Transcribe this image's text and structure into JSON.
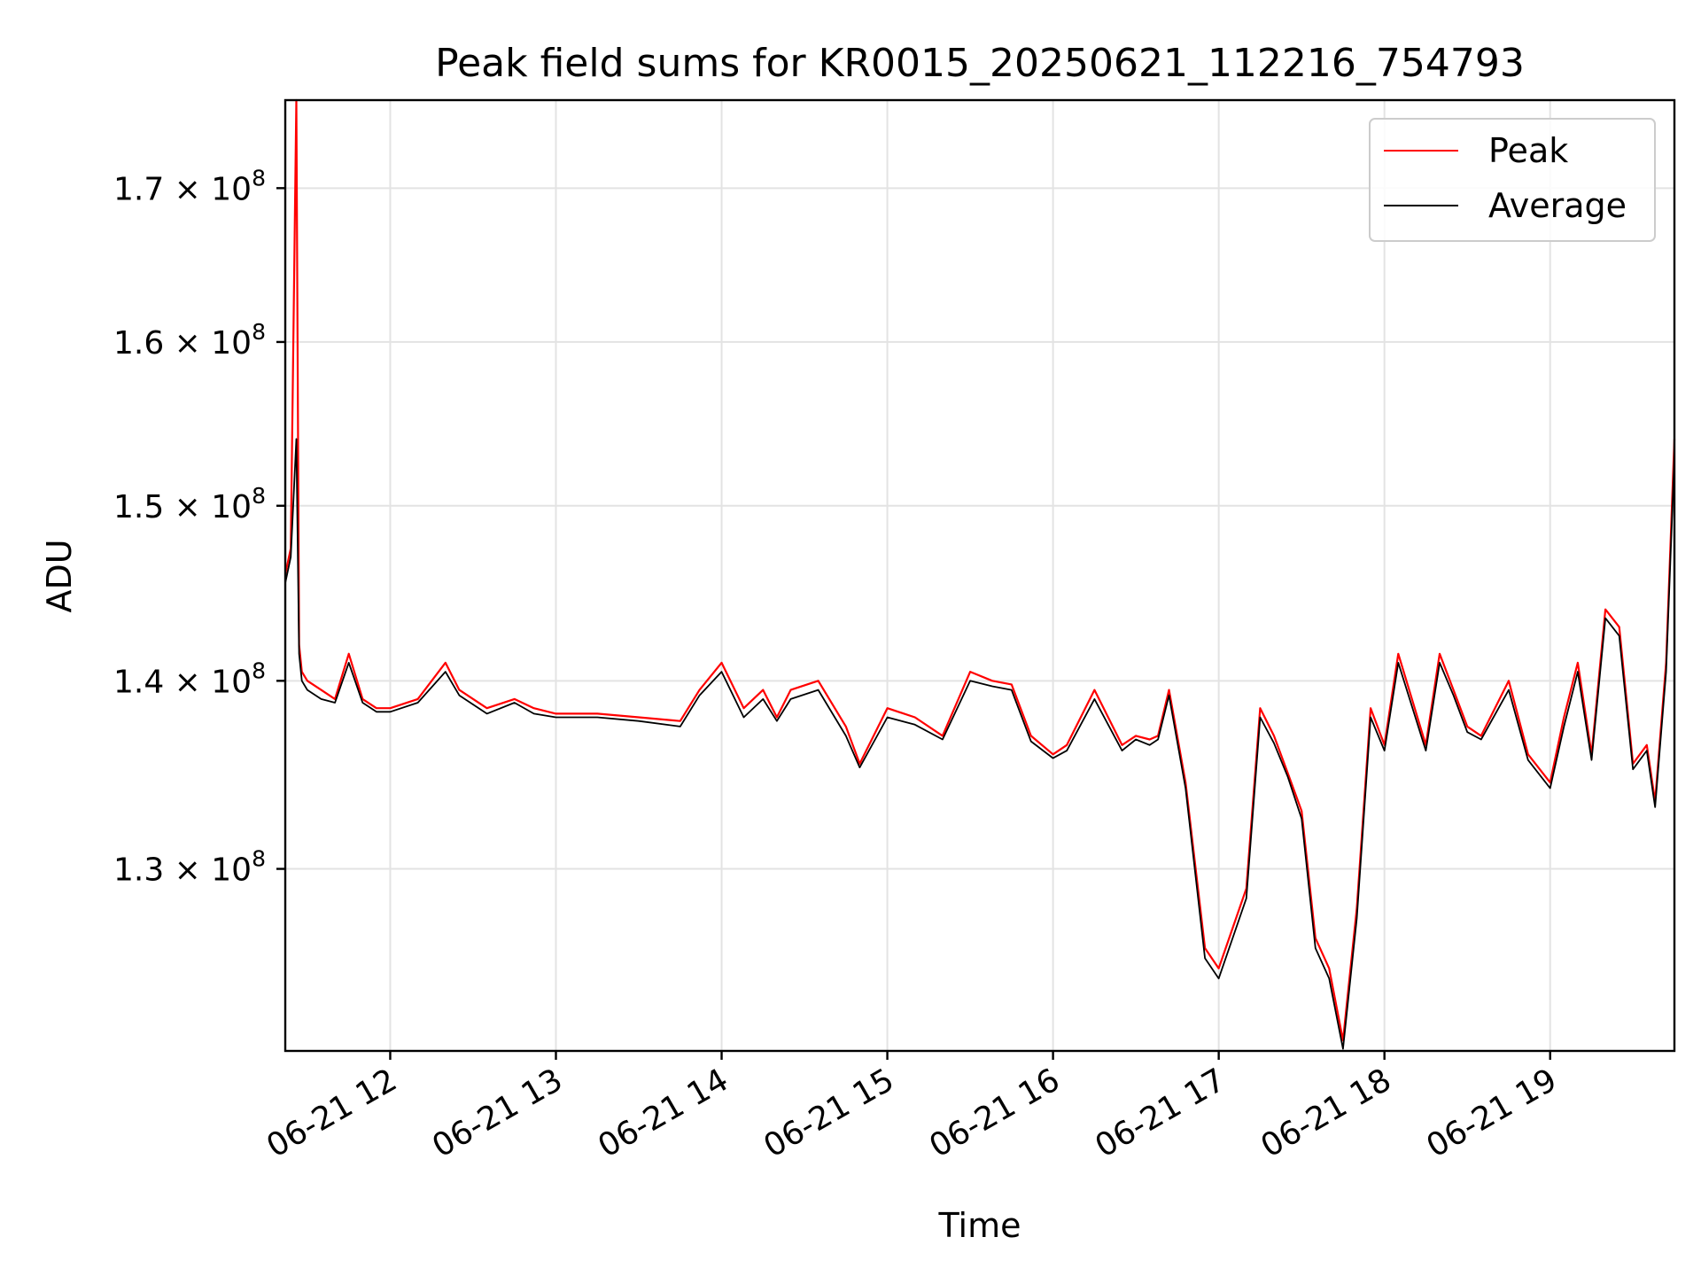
{
  "chart_data": {
    "type": "line",
    "title": "Peak field sums for KR0015_20250621_112216_754793",
    "xlabel": "Time",
    "ylabel": "ADU",
    "y_scale": "log",
    "xlim": [
      "06-21 11:22",
      "06-21 19:45"
    ],
    "ylim": [
      121000000,
      176000000
    ],
    "x_ticks": [
      "06-21 12",
      "06-21 13",
      "06-21 14",
      "06-21 15",
      "06-21 16",
      "06-21 17",
      "06-21 18",
      "06-21 19"
    ],
    "y_ticks": [
      {
        "value": 130000000,
        "mant": "1.3",
        "exp": "8"
      },
      {
        "value": 140000000,
        "mant": "1.4",
        "exp": "8"
      },
      {
        "value": 150000000,
        "mant": "1.5",
        "exp": "8"
      },
      {
        "value": 160000000,
        "mant": "1.6",
        "exp": "8"
      },
      {
        "value": 170000000,
        "mant": "1.7",
        "exp": "8"
      }
    ],
    "grid": true,
    "legend_position": "top-right",
    "x": [
      "06-21 11:22",
      "06-21 11:24",
      "06-21 11:26",
      "06-21 11:27",
      "06-21 11:28",
      "06-21 11:30",
      "06-21 11:35",
      "06-21 11:40",
      "06-21 11:45",
      "06-21 11:50",
      "06-21 11:55",
      "06-21 12:00",
      "06-21 12:10",
      "06-21 12:20",
      "06-21 12:25",
      "06-21 12:35",
      "06-21 12:45",
      "06-21 12:52",
      "06-21 13:00",
      "06-21 13:15",
      "06-21 13:30",
      "06-21 13:45",
      "06-21 13:52",
      "06-21 14:00",
      "06-21 14:08",
      "06-21 14:15",
      "06-21 14:20",
      "06-21 14:25",
      "06-21 14:35",
      "06-21 14:45",
      "06-21 14:50",
      "06-21 15:00",
      "06-21 15:10",
      "06-21 15:20",
      "06-21 15:30",
      "06-21 15:38",
      "06-21 15:45",
      "06-21 15:52",
      "06-21 16:00",
      "06-21 16:05",
      "06-21 16:15",
      "06-21 16:25",
      "06-21 16:30",
      "06-21 16:35",
      "06-21 16:38",
      "06-21 16:42",
      "06-21 16:48",
      "06-21 16:55",
      "06-21 17:00",
      "06-21 17:10",
      "06-21 17:15",
      "06-21 17:20",
      "06-21 17:25",
      "06-21 17:30",
      "06-21 17:35",
      "06-21 17:40",
      "06-21 17:45",
      "06-21 17:50",
      "06-21 17:55",
      "06-21 18:00",
      "06-21 18:05",
      "06-21 18:15",
      "06-21 18:20",
      "06-21 18:25",
      "06-21 18:30",
      "06-21 18:35",
      "06-21 18:45",
      "06-21 18:52",
      "06-21 19:00",
      "06-21 19:05",
      "06-21 19:10",
      "06-21 19:15",
      "06-21 19:20",
      "06-21 19:25",
      "06-21 19:30",
      "06-21 19:35",
      "06-21 19:38",
      "06-21 19:42",
      "06-21 19:45"
    ],
    "series": [
      {
        "name": "Peak",
        "color": "#ff0000",
        "values": [
          146000000,
          147500000,
          176000000,
          142000000,
          140500000,
          140000000,
          139500000,
          139000000,
          141500000,
          139000000,
          138500000,
          138500000,
          139000000,
          141000000,
          139500000,
          138500000,
          139000000,
          138500000,
          138200000,
          138200000,
          138000000,
          137800000,
          139500000,
          141000000,
          138500000,
          139500000,
          138000000,
          139500000,
          140000000,
          137500000,
          135500000,
          138500000,
          138000000,
          137000000,
          140500000,
          140000000,
          139800000,
          137000000,
          136000000,
          136500000,
          139500000,
          136500000,
          137000000,
          136800000,
          137000000,
          139500000,
          134500000,
          126000000,
          125000000,
          129000000,
          138500000,
          137000000,
          135000000,
          133000000,
          126500000,
          125000000,
          121500000,
          128000000,
          138500000,
          136500000,
          141500000,
          136500000,
          141500000,
          139500000,
          137500000,
          137000000,
          140000000,
          136000000,
          134500000,
          138000000,
          141000000,
          136000000,
          144000000,
          143000000,
          135500000,
          136500000,
          133500000,
          141000000,
          154000000
        ]
      },
      {
        "name": "Average",
        "color": "#000000",
        "values": [
          145500000,
          147000000,
          154000000,
          141500000,
          140000000,
          139500000,
          139000000,
          138800000,
          141000000,
          138800000,
          138300000,
          138300000,
          138800000,
          140500000,
          139200000,
          138200000,
          138800000,
          138200000,
          138000000,
          138000000,
          137800000,
          137500000,
          139200000,
          140500000,
          138000000,
          139000000,
          137800000,
          139000000,
          139500000,
          137000000,
          135300000,
          138000000,
          137600000,
          136800000,
          140000000,
          139700000,
          139500000,
          136700000,
          135800000,
          136200000,
          139000000,
          136200000,
          136800000,
          136500000,
          136800000,
          139200000,
          134200000,
          125500000,
          124500000,
          128500000,
          138000000,
          136600000,
          134800000,
          132600000,
          126000000,
          124500000,
          121100000,
          127500000,
          138000000,
          136200000,
          141000000,
          136200000,
          141000000,
          139200000,
          137200000,
          136800000,
          139500000,
          135700000,
          134200000,
          137500000,
          140500000,
          135700000,
          143500000,
          142500000,
          135200000,
          136200000,
          133200000,
          140500000,
          153000000
        ]
      }
    ]
  }
}
